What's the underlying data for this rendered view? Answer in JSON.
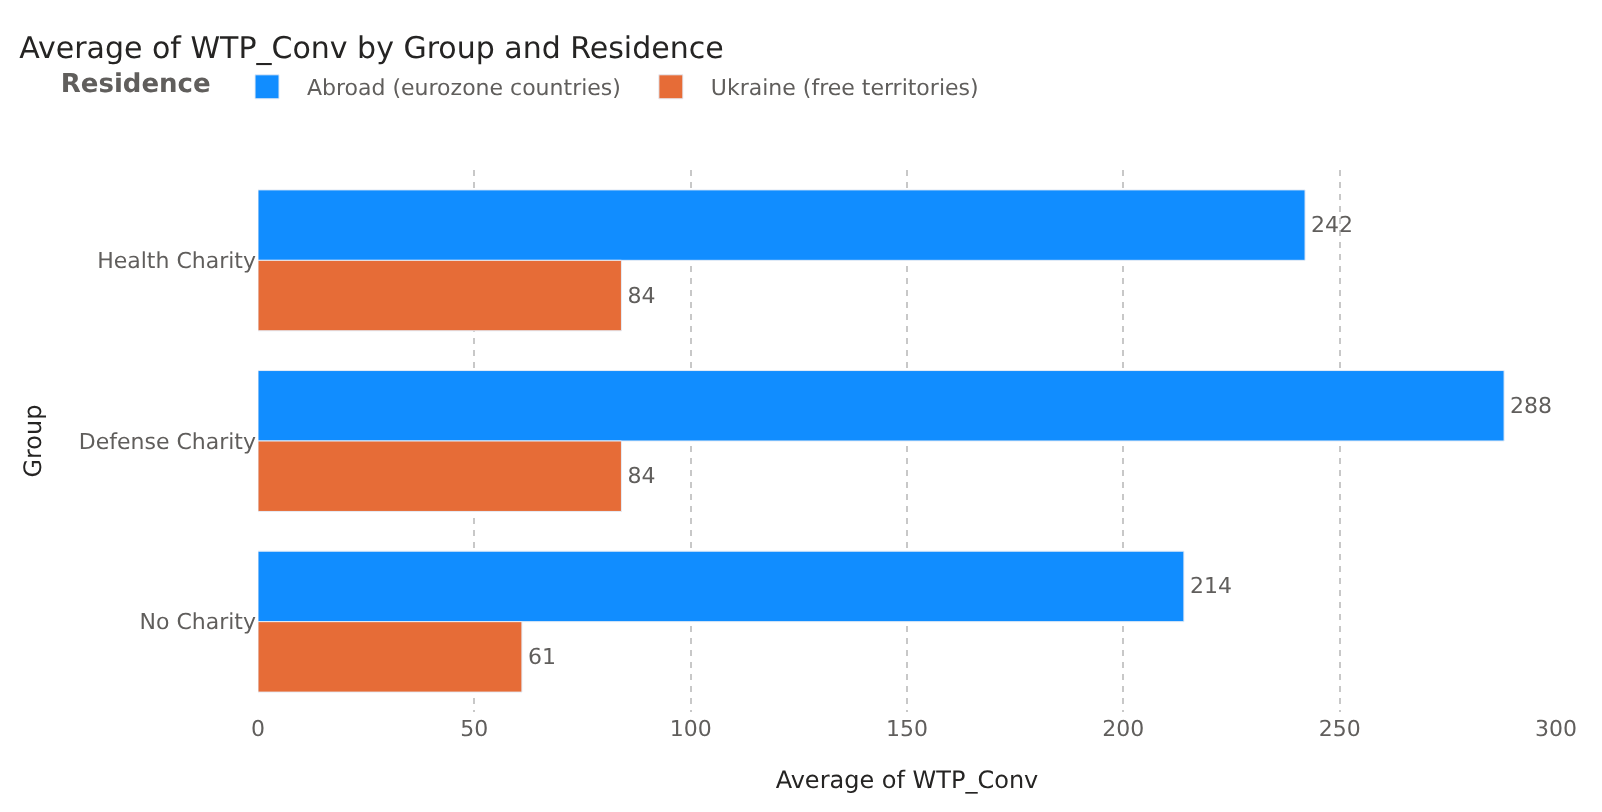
{
  "chart_data": {
    "type": "bar",
    "orientation": "horizontal",
    "title": "Average of WTP_Conv by Group and Residence",
    "xlabel": "Average of WTP_Conv",
    "ylabel": "Group",
    "legend_title": "Residence",
    "legend": "top left",
    "categories": [
      "Health Charity",
      "Defense Charity",
      "No Charity"
    ],
    "series": [
      {
        "name": "Abroad (eurozone countries)",
        "color": "#118dff",
        "values": [
          242,
          288,
          214
        ]
      },
      {
        "name": "Ukraine (free territories)",
        "color": "#e66c37",
        "values": [
          84,
          84,
          61
        ]
      }
    ],
    "data_labels": true,
    "xlim": [
      0,
      300
    ],
    "xticks": [
      0,
      50,
      100,
      150,
      200,
      250,
      300
    ],
    "grid": "x"
  }
}
